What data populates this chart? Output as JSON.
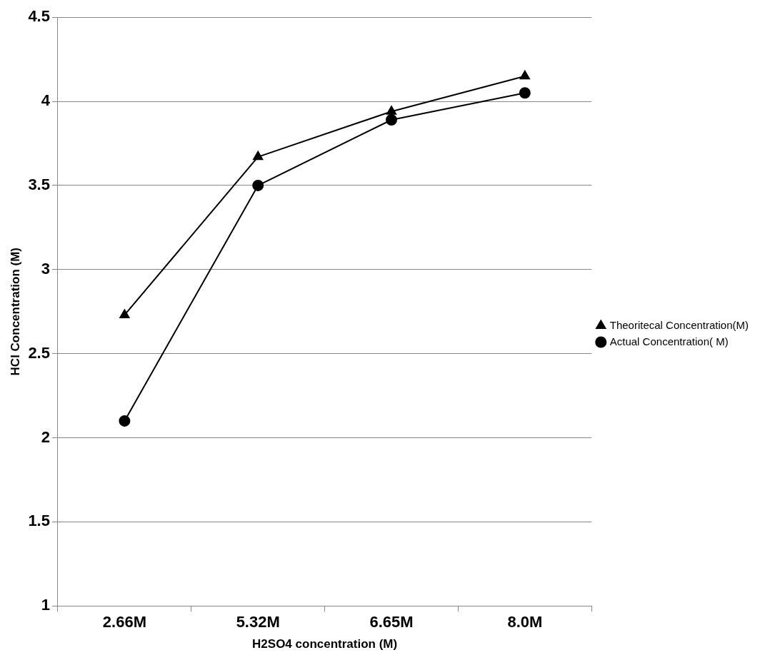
{
  "chart_data": {
    "type": "line",
    "xlabel": "H2SO4 concentration (M)",
    "ylabel": "HCl Concentration (M)",
    "categories": [
      "2.66M",
      "5.32M",
      "6.65M",
      "8.0M"
    ],
    "series": [
      {
        "name": "Theoritecal Concentration(M)",
        "color": "#000000",
        "marker": "triangle",
        "values": [
          2.73,
          3.67,
          3.94,
          4.15
        ]
      },
      {
        "name": "Actual Concentration( M)",
        "color": "#000000",
        "marker": "circle",
        "values": [
          2.1,
          3.5,
          3.89,
          4.05
        ]
      }
    ],
    "ylim": [
      1,
      4.5
    ],
    "yticks": [
      1,
      1.5,
      2,
      2.5,
      3,
      3.5,
      4,
      4.5
    ],
    "grid": "y",
    "legend": "right",
    "line_style": "solid"
  }
}
